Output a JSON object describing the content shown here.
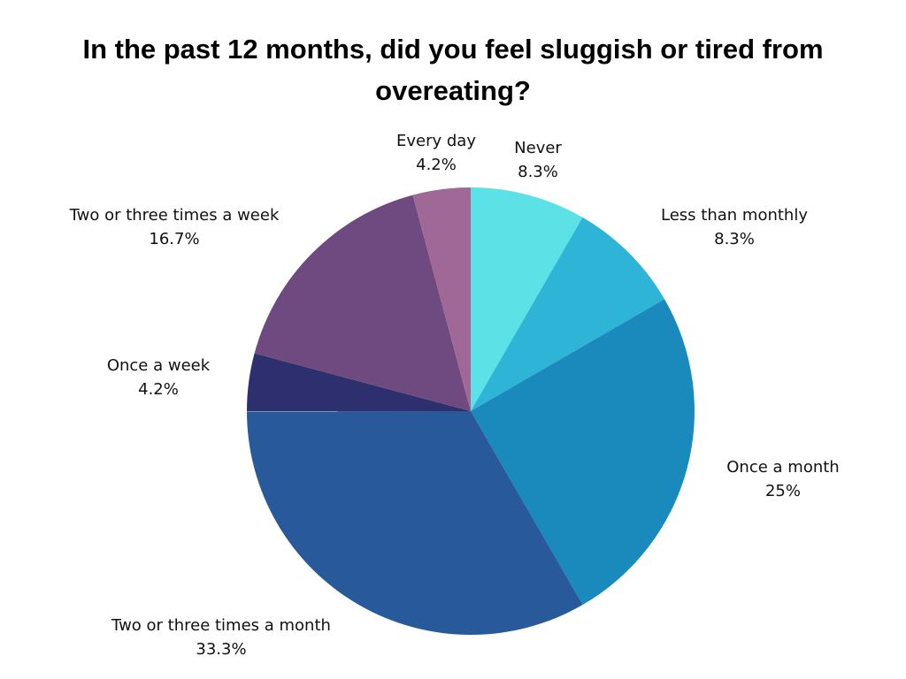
{
  "chart_data": {
    "type": "pie",
    "title": "In the past 12 months, did you feel sluggish or tired from overeating?",
    "slices": [
      {
        "label": "Never",
        "value_text": "8.3%",
        "value": 8.33,
        "color": "#5ce1e6"
      },
      {
        "label": "Less than monthly",
        "value_text": "8.3%",
        "value": 8.33,
        "color": "#2db4d6"
      },
      {
        "label": "Once a month",
        "value_text": "25%",
        "value": 25.0,
        "color": "#1a89bc"
      },
      {
        "label": "Two or three times a month",
        "value_text": "33.3%",
        "value": 33.33,
        "color": "#285a9b"
      },
      {
        "label": "Once a week",
        "value_text": "4.2%",
        "value": 4.17,
        "color": "#2e2f6e"
      },
      {
        "label": "Two or three times a week",
        "value_text": "16.7%",
        "value": 16.67,
        "color": "#6f4a80"
      },
      {
        "label": "Every day",
        "value_text": "4.2%",
        "value": 4.17,
        "color": "#a06896"
      }
    ],
    "start_angle_deg": 0,
    "direction": "clockwise",
    "legend": "none"
  }
}
